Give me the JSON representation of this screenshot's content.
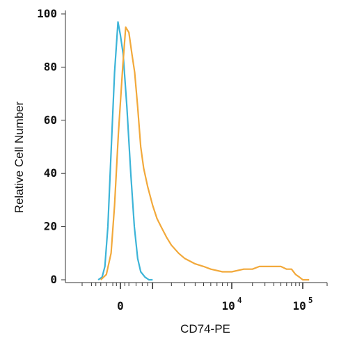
{
  "chart_data": {
    "type": "line",
    "xlabel": "CD74-PE",
    "ylabel": "Relative Cell Number",
    "ylim": [
      0,
      100
    ],
    "x_scale": "biexponential",
    "y_ticks": [
      {
        "value": 0,
        "label": "0"
      },
      {
        "value": 20,
        "label": "20"
      },
      {
        "value": 40,
        "label": "40"
      },
      {
        "value": 60,
        "label": "60"
      },
      {
        "value": 80,
        "label": "80"
      },
      {
        "value": 100,
        "label": "100"
      }
    ],
    "x_tick_labels": [
      {
        "value": 0,
        "base": "0",
        "exp": ""
      },
      {
        "value": 10000,
        "base": "10",
        "exp": "4"
      },
      {
        "value": 100000,
        "base": "10",
        "exp": "5"
      }
    ],
    "series": [
      {
        "color": "#3cb4d8",
        "x": [
          -700,
          -550,
          -450,
          -350,
          -250,
          -150,
          -60,
          0,
          60,
          150,
          250,
          350,
          450,
          550,
          700,
          850,
          1000
        ],
        "y": [
          0,
          1,
          5,
          20,
          48,
          78,
          97,
          92,
          85,
          65,
          40,
          20,
          8,
          3,
          1,
          0,
          0
        ]
      },
      {
        "color": "#f2a93b",
        "x": [
          -600,
          -400,
          -250,
          -150,
          -50,
          50,
          120,
          200,
          280,
          360,
          450,
          550,
          650,
          800,
          1000,
          1200,
          1400,
          1700,
          2000,
          2500,
          3000,
          4000,
          5000,
          6000,
          8000,
          10000,
          15000,
          20000,
          25000,
          30000,
          40000,
          50000,
          60000,
          70000,
          80000,
          90000,
          100000,
          120000
        ],
        "y": [
          0,
          2,
          10,
          28,
          55,
          80,
          95,
          93,
          85,
          78,
          65,
          50,
          42,
          35,
          28,
          23,
          20,
          16,
          13,
          10,
          8,
          6,
          5,
          4,
          3,
          3,
          4,
          4,
          5,
          5,
          5,
          5,
          4,
          4,
          2,
          1,
          0,
          0
        ]
      }
    ]
  }
}
